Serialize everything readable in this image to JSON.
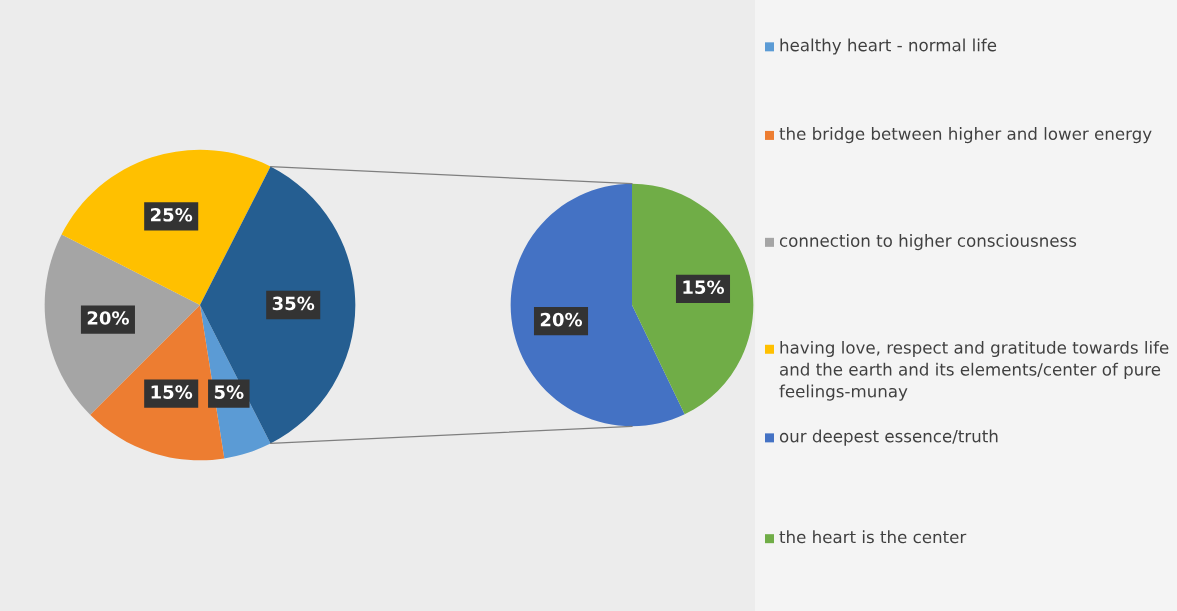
{
  "chart_data": [
    {
      "type": "pie",
      "categories": [
        "healthy heart - normal life",
        "the bridge between higher and lower energy",
        "connection to higher consciousness",
        "having love, respect and gratitude towards life and the earth and its elements/center of pure feelings-munay",
        null
      ],
      "values": [
        5,
        15,
        20,
        25,
        35
      ],
      "value_labels": [
        "5%",
        "15%",
        "20%",
        "25%",
        "35%"
      ],
      "colors": [
        "#5b9bd5",
        "#ed7d31",
        "#a5a5a5",
        "#ffc000",
        "#255e91"
      ],
      "legend": "right"
    },
    {
      "type": "pie",
      "categories": [
        "our deepest essence/truth",
        "the heart is the center"
      ],
      "values": [
        20,
        15
      ],
      "value_labels": [
        "20%",
        "15%"
      ],
      "colors": [
        "#4472c4",
        "#70ad47"
      ],
      "legend": "right"
    }
  ]
}
